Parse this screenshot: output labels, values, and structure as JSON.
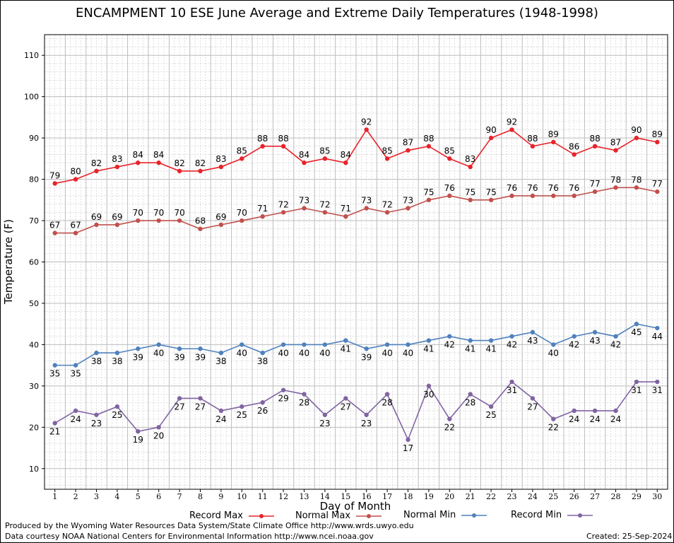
{
  "chart_data": {
    "type": "line",
    "title": "ENCAMPMENT 10 ESE June Average and Extreme Daily Temperatures (1948-1998)",
    "xlabel": "Day of Month",
    "ylabel": "Temperature (F)",
    "ylim": [
      5,
      115
    ],
    "yticks": [
      10,
      20,
      30,
      40,
      50,
      60,
      70,
      80,
      90,
      100,
      110
    ],
    "x": [
      1,
      2,
      3,
      4,
      5,
      6,
      7,
      8,
      9,
      10,
      11,
      12,
      13,
      14,
      15,
      16,
      17,
      18,
      19,
      20,
      21,
      22,
      23,
      24,
      25,
      26,
      27,
      28,
      29,
      30
    ],
    "grid": true,
    "legend_position": "bottom",
    "series": [
      {
        "name": "Record Max",
        "color": "#e8232a",
        "values": [
          79,
          80,
          82,
          83,
          84,
          84,
          82,
          82,
          83,
          85,
          88,
          88,
          84,
          85,
          84,
          92,
          85,
          87,
          88,
          85,
          83,
          90,
          92,
          88,
          89,
          86,
          88,
          87,
          90,
          89
        ]
      },
      {
        "name": "Normal Max",
        "color": "#c0504d",
        "values": [
          67,
          67,
          69,
          69,
          70,
          70,
          70,
          68,
          69,
          70,
          71,
          72,
          73,
          72,
          71,
          73,
          72,
          73,
          75,
          76,
          75,
          75,
          76,
          76,
          76,
          76,
          77,
          78,
          78,
          77
        ]
      },
      {
        "name": "Normal Min",
        "color": "#4f81bd",
        "values": [
          35,
          35,
          38,
          38,
          39,
          40,
          39,
          39,
          38,
          40,
          38,
          40,
          40,
          40,
          41,
          39,
          40,
          40,
          41,
          42,
          41,
          41,
          42,
          43,
          40,
          42,
          43,
          42,
          45,
          44
        ]
      },
      {
        "name": "Record Min",
        "color": "#8064a2",
        "values": [
          21,
          24,
          23,
          25,
          19,
          20,
          27,
          27,
          24,
          25,
          26,
          29,
          28,
          23,
          27,
          23,
          28,
          17,
          30,
          22,
          28,
          25,
          31,
          27,
          22,
          24,
          24,
          24,
          31,
          31
        ]
      }
    ]
  },
  "footer": {
    "line1": "Produced by the Wyoming Water Resources Data System/State Climate Office http://www.wrds.uwyo.edu",
    "line2": "Data courtesy NOAA National Centers for Environmental Information http://www.ncei.noaa.gov",
    "created": "Created:  25-Sep-2024"
  }
}
